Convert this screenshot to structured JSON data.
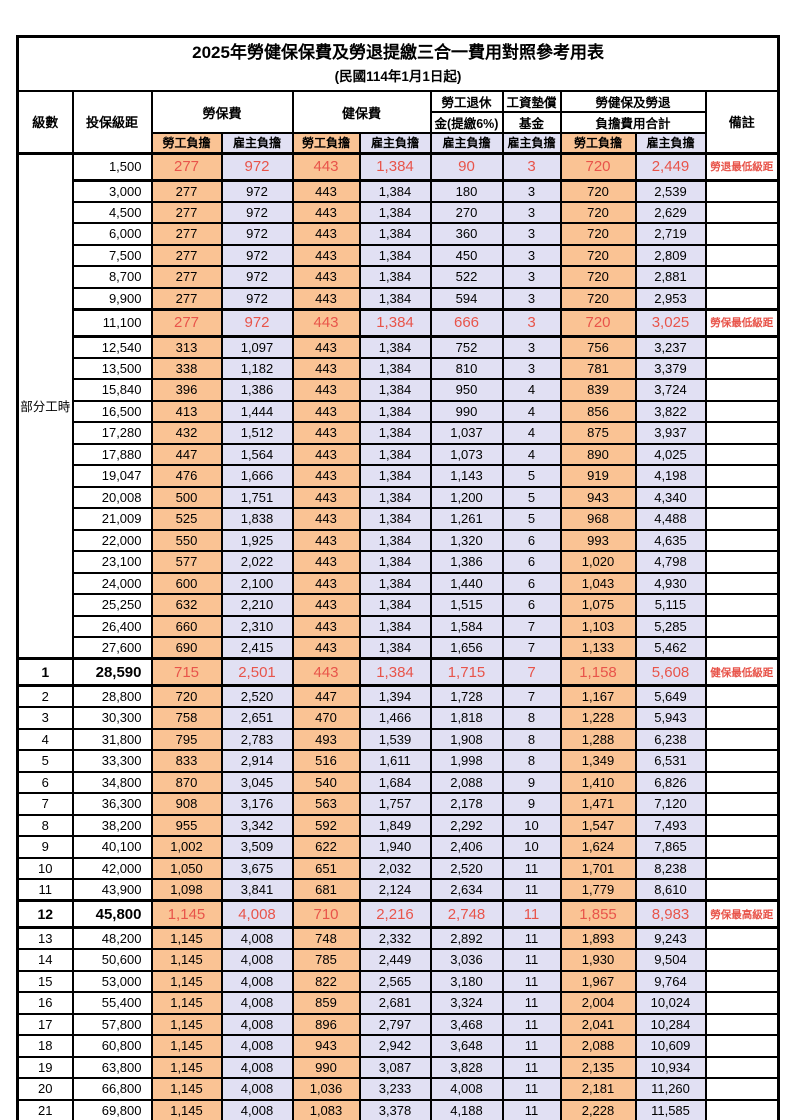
{
  "title": "2025年勞健保保費及勞退提繳三合一費用對照參考用表",
  "subtitle": "(民國114年1月1日起)",
  "colors": {
    "employee_bg": "#FAC394",
    "employer_bg": "#E1E0F3",
    "highlight_red": "#E8544A",
    "border": "#000000"
  },
  "header": {
    "level": "級數",
    "bracket": "投保級距",
    "labor_insurance": "勞保費",
    "health_insurance": "健保費",
    "pension_line1": "勞工退休",
    "pension_line2": "金(提繳6%)",
    "wage_fund_line1": "工資墊償",
    "wage_fund_line2": "基金",
    "total_line1": "勞健保及勞退",
    "total_line2": "負擔費用合計",
    "remark": "備註",
    "employee": "勞工負擔",
    "employer": "雇主負擔"
  },
  "part_time_label": "部分工時",
  "rows": [
    {
      "section": "part_time",
      "bracket": "1,500",
      "li_emp": "277",
      "li_er": "972",
      "hi_emp": "443",
      "hi_er": "1,384",
      "pension": "90",
      "fund": "3",
      "tot_emp": "720",
      "tot_er": "2,449",
      "remark": "勞退最低級距",
      "special": true
    },
    {
      "section": "part_time",
      "bracket": "3,000",
      "li_emp": "277",
      "li_er": "972",
      "hi_emp": "443",
      "hi_er": "1,384",
      "pension": "180",
      "fund": "3",
      "tot_emp": "720",
      "tot_er": "2,539"
    },
    {
      "section": "part_time",
      "bracket": "4,500",
      "li_emp": "277",
      "li_er": "972",
      "hi_emp": "443",
      "hi_er": "1,384",
      "pension": "270",
      "fund": "3",
      "tot_emp": "720",
      "tot_er": "2,629"
    },
    {
      "section": "part_time",
      "bracket": "6,000",
      "li_emp": "277",
      "li_er": "972",
      "hi_emp": "443",
      "hi_er": "1,384",
      "pension": "360",
      "fund": "3",
      "tot_emp": "720",
      "tot_er": "2,719"
    },
    {
      "section": "part_time",
      "bracket": "7,500",
      "li_emp": "277",
      "li_er": "972",
      "hi_emp": "443",
      "hi_er": "1,384",
      "pension": "450",
      "fund": "3",
      "tot_emp": "720",
      "tot_er": "2,809"
    },
    {
      "section": "part_time",
      "bracket": "8,700",
      "li_emp": "277",
      "li_er": "972",
      "hi_emp": "443",
      "hi_er": "1,384",
      "pension": "522",
      "fund": "3",
      "tot_emp": "720",
      "tot_er": "2,881"
    },
    {
      "section": "part_time",
      "bracket": "9,900",
      "li_emp": "277",
      "li_er": "972",
      "hi_emp": "443",
      "hi_er": "1,384",
      "pension": "594",
      "fund": "3",
      "tot_emp": "720",
      "tot_er": "2,953"
    },
    {
      "section": "part_time",
      "bracket": "11,100",
      "li_emp": "277",
      "li_er": "972",
      "hi_emp": "443",
      "hi_er": "1,384",
      "pension": "666",
      "fund": "3",
      "tot_emp": "720",
      "tot_er": "3,025",
      "remark": "勞保最低級距",
      "special": true
    },
    {
      "section": "part_time",
      "bracket": "12,540",
      "li_emp": "313",
      "li_er": "1,097",
      "hi_emp": "443",
      "hi_er": "1,384",
      "pension": "752",
      "fund": "3",
      "tot_emp": "756",
      "tot_er": "3,237"
    },
    {
      "section": "part_time",
      "bracket": "13,500",
      "li_emp": "338",
      "li_er": "1,182",
      "hi_emp": "443",
      "hi_er": "1,384",
      "pension": "810",
      "fund": "3",
      "tot_emp": "781",
      "tot_er": "3,379"
    },
    {
      "section": "part_time",
      "bracket": "15,840",
      "li_emp": "396",
      "li_er": "1,386",
      "hi_emp": "443",
      "hi_er": "1,384",
      "pension": "950",
      "fund": "4",
      "tot_emp": "839",
      "tot_er": "3,724"
    },
    {
      "section": "part_time",
      "bracket": "16,500",
      "li_emp": "413",
      "li_er": "1,444",
      "hi_emp": "443",
      "hi_er": "1,384",
      "pension": "990",
      "fund": "4",
      "tot_emp": "856",
      "tot_er": "3,822"
    },
    {
      "section": "part_time",
      "bracket": "17,280",
      "li_emp": "432",
      "li_er": "1,512",
      "hi_emp": "443",
      "hi_er": "1,384",
      "pension": "1,037",
      "fund": "4",
      "tot_emp": "875",
      "tot_er": "3,937"
    },
    {
      "section": "part_time",
      "bracket": "17,880",
      "li_emp": "447",
      "li_er": "1,564",
      "hi_emp": "443",
      "hi_er": "1,384",
      "pension": "1,073",
      "fund": "4",
      "tot_emp": "890",
      "tot_er": "4,025"
    },
    {
      "section": "part_time",
      "bracket": "19,047",
      "li_emp": "476",
      "li_er": "1,666",
      "hi_emp": "443",
      "hi_er": "1,384",
      "pension": "1,143",
      "fund": "5",
      "tot_emp": "919",
      "tot_er": "4,198"
    },
    {
      "section": "part_time",
      "bracket": "20,008",
      "li_emp": "500",
      "li_er": "1,751",
      "hi_emp": "443",
      "hi_er": "1,384",
      "pension": "1,200",
      "fund": "5",
      "tot_emp": "943",
      "tot_er": "4,340"
    },
    {
      "section": "part_time",
      "bracket": "21,009",
      "li_emp": "525",
      "li_er": "1,838",
      "hi_emp": "443",
      "hi_er": "1,384",
      "pension": "1,261",
      "fund": "5",
      "tot_emp": "968",
      "tot_er": "4,488"
    },
    {
      "section": "part_time",
      "bracket": "22,000",
      "li_emp": "550",
      "li_er": "1,925",
      "hi_emp": "443",
      "hi_er": "1,384",
      "pension": "1,320",
      "fund": "6",
      "tot_emp": "993",
      "tot_er": "4,635"
    },
    {
      "section": "part_time",
      "bracket": "23,100",
      "li_emp": "577",
      "li_er": "2,022",
      "hi_emp": "443",
      "hi_er": "1,384",
      "pension": "1,386",
      "fund": "6",
      "tot_emp": "1,020",
      "tot_er": "4,798"
    },
    {
      "section": "part_time",
      "bracket": "24,000",
      "li_emp": "600",
      "li_er": "2,100",
      "hi_emp": "443",
      "hi_er": "1,384",
      "pension": "1,440",
      "fund": "6",
      "tot_emp": "1,043",
      "tot_er": "4,930"
    },
    {
      "section": "part_time",
      "bracket": "25,250",
      "li_emp": "632",
      "li_er": "2,210",
      "hi_emp": "443",
      "hi_er": "1,384",
      "pension": "1,515",
      "fund": "6",
      "tot_emp": "1,075",
      "tot_er": "5,115"
    },
    {
      "section": "part_time",
      "bracket": "26,400",
      "li_emp": "660",
      "li_er": "2,310",
      "hi_emp": "443",
      "hi_er": "1,384",
      "pension": "1,584",
      "fund": "7",
      "tot_emp": "1,103",
      "tot_er": "5,285"
    },
    {
      "section": "part_time",
      "bracket": "27,600",
      "li_emp": "690",
      "li_er": "2,415",
      "hi_emp": "443",
      "hi_er": "1,384",
      "pension": "1,656",
      "fund": "7",
      "tot_emp": "1,133",
      "tot_er": "5,462"
    },
    {
      "section": "levels",
      "level": "1",
      "bracket": "28,590",
      "li_emp": "715",
      "li_er": "2,501",
      "hi_emp": "443",
      "hi_er": "1,384",
      "pension": "1,715",
      "fund": "7",
      "tot_emp": "1,158",
      "tot_er": "5,608",
      "remark": "健保最低級距",
      "special": true,
      "big": true
    },
    {
      "section": "levels",
      "level": "2",
      "bracket": "28,800",
      "li_emp": "720",
      "li_er": "2,520",
      "hi_emp": "447",
      "hi_er": "1,394",
      "pension": "1,728",
      "fund": "7",
      "tot_emp": "1,167",
      "tot_er": "5,649"
    },
    {
      "section": "levels",
      "level": "3",
      "bracket": "30,300",
      "li_emp": "758",
      "li_er": "2,651",
      "hi_emp": "470",
      "hi_er": "1,466",
      "pension": "1,818",
      "fund": "8",
      "tot_emp": "1,228",
      "tot_er": "5,943"
    },
    {
      "section": "levels",
      "level": "4",
      "bracket": "31,800",
      "li_emp": "795",
      "li_er": "2,783",
      "hi_emp": "493",
      "hi_er": "1,539",
      "pension": "1,908",
      "fund": "8",
      "tot_emp": "1,288",
      "tot_er": "6,238"
    },
    {
      "section": "levels",
      "level": "5",
      "bracket": "33,300",
      "li_emp": "833",
      "li_er": "2,914",
      "hi_emp": "516",
      "hi_er": "1,611",
      "pension": "1,998",
      "fund": "8",
      "tot_emp": "1,349",
      "tot_er": "6,531"
    },
    {
      "section": "levels",
      "level": "6",
      "bracket": "34,800",
      "li_emp": "870",
      "li_er": "3,045",
      "hi_emp": "540",
      "hi_er": "1,684",
      "pension": "2,088",
      "fund": "9",
      "tot_emp": "1,410",
      "tot_er": "6,826"
    },
    {
      "section": "levels",
      "level": "7",
      "bracket": "36,300",
      "li_emp": "908",
      "li_er": "3,176",
      "hi_emp": "563",
      "hi_er": "1,757",
      "pension": "2,178",
      "fund": "9",
      "tot_emp": "1,471",
      "tot_er": "7,120"
    },
    {
      "section": "levels",
      "level": "8",
      "bracket": "38,200",
      "li_emp": "955",
      "li_er": "3,342",
      "hi_emp": "592",
      "hi_er": "1,849",
      "pension": "2,292",
      "fund": "10",
      "tot_emp": "1,547",
      "tot_er": "7,493"
    },
    {
      "section": "levels",
      "level": "9",
      "bracket": "40,100",
      "li_emp": "1,002",
      "li_er": "3,509",
      "hi_emp": "622",
      "hi_er": "1,940",
      "pension": "2,406",
      "fund": "10",
      "tot_emp": "1,624",
      "tot_er": "7,865"
    },
    {
      "section": "levels",
      "level": "10",
      "bracket": "42,000",
      "li_emp": "1,050",
      "li_er": "3,675",
      "hi_emp": "651",
      "hi_er": "2,032",
      "pension": "2,520",
      "fund": "11",
      "tot_emp": "1,701",
      "tot_er": "8,238"
    },
    {
      "section": "levels",
      "level": "11",
      "bracket": "43,900",
      "li_emp": "1,098",
      "li_er": "3,841",
      "hi_emp": "681",
      "hi_er": "2,124",
      "pension": "2,634",
      "fund": "11",
      "tot_emp": "1,779",
      "tot_er": "8,610"
    },
    {
      "section": "levels",
      "level": "12",
      "bracket": "45,800",
      "li_emp": "1,145",
      "li_er": "4,008",
      "hi_emp": "710",
      "hi_er": "2,216",
      "pension": "2,748",
      "fund": "11",
      "tot_emp": "1,855",
      "tot_er": "8,983",
      "remark": "勞保最高級距",
      "special": true,
      "big": true
    },
    {
      "section": "levels",
      "level": "13",
      "bracket": "48,200",
      "li_emp": "1,145",
      "li_er": "4,008",
      "hi_emp": "748",
      "hi_er": "2,332",
      "pension": "2,892",
      "fund": "11",
      "tot_emp": "1,893",
      "tot_er": "9,243"
    },
    {
      "section": "levels",
      "level": "14",
      "bracket": "50,600",
      "li_emp": "1,145",
      "li_er": "4,008",
      "hi_emp": "785",
      "hi_er": "2,449",
      "pension": "3,036",
      "fund": "11",
      "tot_emp": "1,930",
      "tot_er": "9,504"
    },
    {
      "section": "levels",
      "level": "15",
      "bracket": "53,000",
      "li_emp": "1,145",
      "li_er": "4,008",
      "hi_emp": "822",
      "hi_er": "2,565",
      "pension": "3,180",
      "fund": "11",
      "tot_emp": "1,967",
      "tot_er": "9,764"
    },
    {
      "section": "levels",
      "level": "16",
      "bracket": "55,400",
      "li_emp": "1,145",
      "li_er": "4,008",
      "hi_emp": "859",
      "hi_er": "2,681",
      "pension": "3,324",
      "fund": "11",
      "tot_emp": "2,004",
      "tot_er": "10,024"
    },
    {
      "section": "levels",
      "level": "17",
      "bracket": "57,800",
      "li_emp": "1,145",
      "li_er": "4,008",
      "hi_emp": "896",
      "hi_er": "2,797",
      "pension": "3,468",
      "fund": "11",
      "tot_emp": "2,041",
      "tot_er": "10,284"
    },
    {
      "section": "levels",
      "level": "18",
      "bracket": "60,800",
      "li_emp": "1,145",
      "li_er": "4,008",
      "hi_emp": "943",
      "hi_er": "2,942",
      "pension": "3,648",
      "fund": "11",
      "tot_emp": "2,088",
      "tot_er": "10,609"
    },
    {
      "section": "levels",
      "level": "19",
      "bracket": "63,800",
      "li_emp": "1,145",
      "li_er": "4,008",
      "hi_emp": "990",
      "hi_er": "3,087",
      "pension": "3,828",
      "fund": "11",
      "tot_emp": "2,135",
      "tot_er": "10,934"
    },
    {
      "section": "levels",
      "level": "20",
      "bracket": "66,800",
      "li_emp": "1,145",
      "li_er": "4,008",
      "hi_emp": "1,036",
      "hi_er": "3,233",
      "pension": "4,008",
      "fund": "11",
      "tot_emp": "2,181",
      "tot_er": "11,260"
    },
    {
      "section": "levels",
      "level": "21",
      "bracket": "69,800",
      "li_emp": "1,145",
      "li_er": "4,008",
      "hi_emp": "1,083",
      "hi_er": "3,378",
      "pension": "4,188",
      "fund": "11",
      "tot_emp": "2,228",
      "tot_er": "11,585"
    }
  ]
}
